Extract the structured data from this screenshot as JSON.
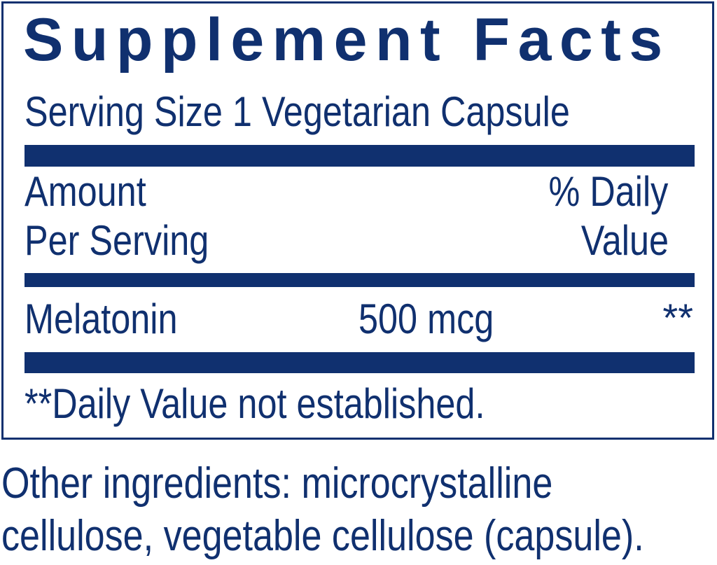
{
  "label": {
    "title": "Supplement Facts",
    "serving_size": "Serving Size 1 Vegetarian Capsule",
    "header": {
      "amount_line1": "Amount",
      "amount_line2": "Per Serving",
      "dv_line1": "% Daily",
      "dv_line2": "Value"
    },
    "rows": [
      {
        "name": "Melatonin",
        "amount": "500 mcg",
        "dv": "**"
      }
    ],
    "footnote": "**Daily Value not established."
  },
  "other_ingredients": {
    "line1": "Other ingredients: microcrystalline",
    "line2": "cellulose, vegetable cellulose (capsule)."
  },
  "colors": {
    "ink": "#10306f"
  }
}
